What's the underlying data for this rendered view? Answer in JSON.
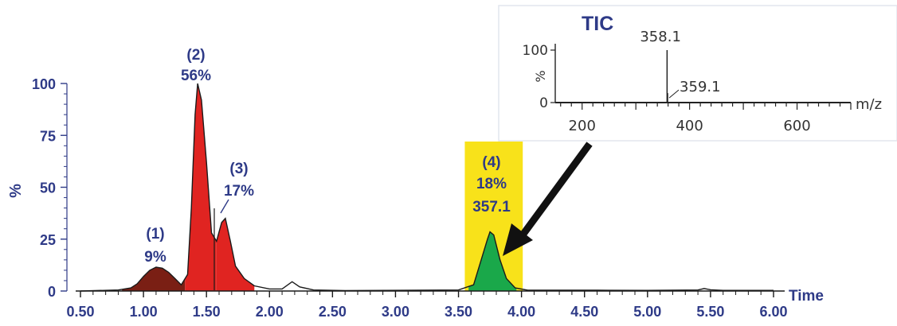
{
  "chart_data": [
    {
      "type": "area",
      "xlabel": "Time",
      "ylabel": "%",
      "xlim": [
        0.5,
        6.0
      ],
      "ylim": [
        0,
        100
      ],
      "x_ticks": [
        "0.50",
        "1.00",
        "1.50",
        "2.00",
        "2.50",
        "3.00",
        "3.50",
        "4.00",
        "4.50",
        "5.00",
        "5.50",
        "6.00"
      ],
      "y_ticks": [
        "0",
        "25",
        "50",
        "75",
        "100"
      ],
      "grid": false,
      "trace": [
        [
          0.5,
          0
        ],
        [
          0.8,
          0.5
        ],
        [
          0.9,
          1.5
        ],
        [
          0.95,
          3.5
        ],
        [
          1.0,
          7
        ],
        [
          1.05,
          10
        ],
        [
          1.1,
          11.5
        ],
        [
          1.15,
          11
        ],
        [
          1.2,
          9
        ],
        [
          1.25,
          6
        ],
        [
          1.3,
          3
        ],
        [
          1.35,
          8
        ],
        [
          1.38,
          40
        ],
        [
          1.41,
          85
        ],
        [
          1.43,
          100
        ],
        [
          1.46,
          92
        ],
        [
          1.5,
          62
        ],
        [
          1.54,
          28
        ],
        [
          1.58,
          24
        ],
        [
          1.62,
          33
        ],
        [
          1.65,
          35
        ],
        [
          1.69,
          24
        ],
        [
          1.73,
          12
        ],
        [
          1.8,
          6
        ],
        [
          1.88,
          2.5
        ],
        [
          2.0,
          1
        ],
        [
          2.1,
          1
        ],
        [
          2.18,
          4.5
        ],
        [
          2.24,
          2
        ],
        [
          2.35,
          0.5
        ],
        [
          2.6,
          0.2
        ],
        [
          3.5,
          0.5
        ],
        [
          3.62,
          3
        ],
        [
          3.68,
          15
        ],
        [
          3.73,
          25
        ],
        [
          3.75,
          28.5
        ],
        [
          3.78,
          27
        ],
        [
          3.83,
          15
        ],
        [
          3.88,
          6
        ],
        [
          3.95,
          1.5
        ],
        [
          4.05,
          0.4
        ],
        [
          4.6,
          0.4
        ],
        [
          5.0,
          0.3
        ],
        [
          5.4,
          0.5
        ],
        [
          5.45,
          1.2
        ],
        [
          5.5,
          0.6
        ],
        [
          5.6,
          0.3
        ],
        [
          6.0,
          0.3
        ]
      ],
      "peaks": [
        {
          "id": "1",
          "label": "(1)",
          "percent": "9%",
          "start": 0.83,
          "end": 1.33,
          "color": "#7a1f14"
        },
        {
          "id": "2",
          "label": "(2)",
          "percent": "56%",
          "start": 1.33,
          "end": 1.58,
          "color": "#e02421"
        },
        {
          "id": "3",
          "label": "(3)",
          "percent": "17%",
          "start": 1.58,
          "end": 1.88,
          "color": "#e02421"
        },
        {
          "id": "4",
          "label": "(4)",
          "percent": "18%",
          "mass": "357.1",
          "start": 3.58,
          "end": 3.96,
          "color": "#1aa84a",
          "highlight_color": "#f8e21a"
        }
      ]
    },
    {
      "type": "bar",
      "title": "TIC",
      "xlabel": "m/z",
      "ylabel": "%",
      "xlim": [
        150,
        700
      ],
      "ylim": [
        0,
        100
      ],
      "x_ticks": [
        "200",
        "400",
        "600"
      ],
      "y_ticks": [
        "0",
        "100"
      ],
      "peaks": [
        {
          "mz": 358.1,
          "label": "358.1",
          "value": 100
        },
        {
          "mz": 359.1,
          "label": "359.1",
          "value": 18
        }
      ]
    }
  ],
  "colors": {
    "axis_text": "#2e3a87",
    "highlight": "#f8e21a"
  }
}
